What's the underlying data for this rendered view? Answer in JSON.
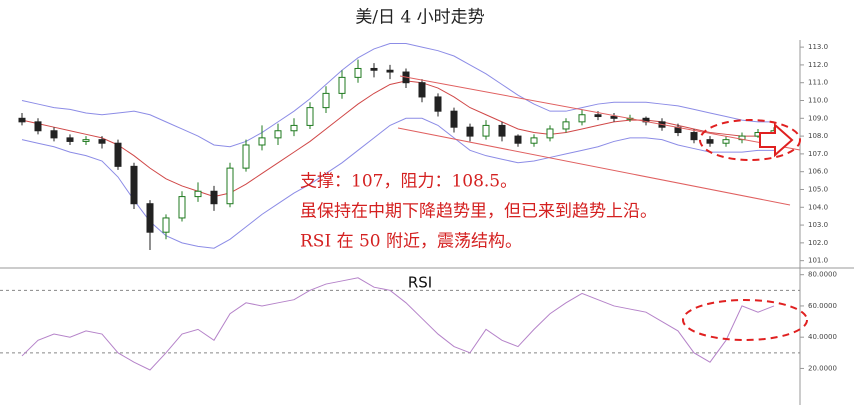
{
  "chart_data": [
    {
      "type": "candlestick",
      "title": "美/日 4 小时走势",
      "open": [
        109.0,
        108.8,
        108.3,
        107.9,
        107.7,
        107.8,
        107.6,
        106.3,
        104.2,
        102.6,
        103.4,
        104.6,
        104.9,
        104.2,
        106.2,
        107.5,
        107.9,
        108.3,
        108.6,
        109.6,
        110.4,
        111.3,
        111.8,
        111.7,
        111.6,
        111.0,
        110.2,
        109.4,
        108.5,
        108.0,
        108.6,
        108.0,
        107.6,
        107.9,
        108.4,
        108.8,
        109.2,
        109.1,
        109.0,
        109.0,
        108.8,
        108.5,
        108.2,
        107.8,
        107.6,
        107.8,
        108.0,
        108.2
      ],
      "high": [
        109.3,
        109.0,
        108.5,
        108.1,
        108.0,
        108.0,
        107.8,
        106.5,
        104.4,
        103.6,
        104.9,
        105.4,
        105.2,
        106.5,
        107.8,
        108.6,
        108.7,
        109.0,
        109.9,
        110.8,
        111.7,
        112.3,
        112.1,
        112.0,
        111.8,
        111.2,
        110.4,
        109.6,
        108.7,
        108.9,
        108.8,
        108.1,
        108.1,
        108.6,
        109.0,
        109.5,
        109.4,
        109.3,
        109.2,
        109.1,
        109.0,
        108.7,
        108.4,
        108.0,
        108.0,
        108.2,
        108.4,
        108.5
      ],
      "low": [
        108.6,
        108.1,
        107.7,
        107.5,
        107.5,
        107.3,
        106.1,
        103.9,
        101.6,
        102.2,
        103.2,
        104.3,
        103.8,
        104.0,
        106.0,
        107.2,
        107.5,
        108.0,
        108.4,
        109.3,
        110.1,
        111.0,
        111.3,
        111.2,
        110.7,
        109.9,
        109.1,
        108.2,
        107.7,
        107.8,
        107.7,
        107.4,
        107.4,
        107.7,
        108.2,
        108.6,
        108.9,
        108.8,
        108.8,
        108.6,
        108.3,
        108.0,
        107.6,
        107.4,
        107.4,
        107.6,
        107.9,
        108.0
      ],
      "close": [
        108.8,
        108.3,
        107.9,
        107.7,
        107.8,
        107.6,
        106.3,
        104.2,
        102.6,
        103.4,
        104.6,
        104.9,
        104.2,
        106.2,
        107.5,
        107.9,
        108.3,
        108.6,
        109.6,
        110.4,
        111.3,
        111.8,
        111.7,
        111.6,
        111.0,
        110.2,
        109.4,
        108.5,
        108.0,
        108.6,
        108.0,
        107.6,
        107.9,
        108.4,
        108.8,
        109.2,
        109.1,
        109.0,
        109.0,
        108.8,
        108.5,
        108.2,
        107.8,
        107.6,
        107.8,
        108.0,
        108.2,
        108.3
      ],
      "up_color": "#1f7a1f",
      "down_color": "#222222",
      "overlays": [
        {
          "color": "#8c8ce6",
          "values": [
            110.0,
            109.8,
            109.6,
            109.5,
            109.3,
            109.2,
            109.3,
            109.4,
            109.2,
            108.8,
            108.4,
            108.0,
            107.5,
            107.4,
            107.7,
            108.2,
            108.8,
            109.4,
            110.1,
            110.9,
            111.7,
            112.4,
            112.9,
            113.2,
            113.2,
            113.0,
            112.8,
            112.5,
            112.0,
            111.5,
            110.9,
            110.3,
            109.8,
            109.4,
            109.4,
            109.6,
            109.8,
            109.9,
            109.9,
            109.9,
            109.8,
            109.7,
            109.5,
            109.3,
            109.1,
            108.9,
            108.8,
            108.8
          ]
        },
        {
          "color": "#d04848",
          "values": [
            108.9,
            108.7,
            108.5,
            108.3,
            108.1,
            107.9,
            107.5,
            106.9,
            106.2,
            105.6,
            105.2,
            104.9,
            104.6,
            104.8,
            105.3,
            105.9,
            106.5,
            107.1,
            107.7,
            108.4,
            109.1,
            109.8,
            110.4,
            110.9,
            111.1,
            111.0,
            110.7,
            110.2,
            109.6,
            109.2,
            108.8,
            108.4,
            108.2,
            108.1,
            108.2,
            108.4,
            108.6,
            108.8,
            108.9,
            108.9,
            108.8,
            108.6,
            108.4,
            108.2,
            108.1,
            108.0,
            108.0,
            108.0
          ]
        },
        {
          "color": "#8c8ce6",
          "values": [
            107.8,
            107.6,
            107.4,
            107.1,
            106.9,
            106.6,
            105.7,
            104.4,
            103.2,
            102.4,
            102.0,
            101.8,
            101.7,
            102.2,
            102.9,
            103.6,
            104.2,
            104.8,
            105.3,
            105.9,
            106.5,
            107.2,
            107.9,
            108.6,
            109.0,
            109.0,
            108.6,
            107.9,
            107.2,
            106.9,
            106.7,
            106.5,
            106.6,
            106.8,
            107.0,
            107.2,
            107.4,
            107.7,
            107.9,
            107.9,
            107.8,
            107.5,
            107.3,
            107.1,
            107.1,
            107.1,
            107.2,
            107.2
          ]
        }
      ],
      "ylim": [
        100.7,
        113.4
      ],
      "yticks": [
        {
          "value": 101,
          "label": "101.0"
        },
        {
          "value": 102,
          "label": "102.0"
        },
        {
          "value": 103,
          "label": "103.0"
        },
        {
          "value": 104,
          "label": "104.0"
        },
        {
          "value": 105,
          "label": "105.0"
        },
        {
          "value": 106,
          "label": "106.0"
        },
        {
          "value": 107,
          "label": "107.0"
        },
        {
          "value": 108,
          "label": "108.0"
        },
        {
          "value": 109,
          "label": "109.0"
        },
        {
          "value": 110,
          "label": "110.0"
        },
        {
          "value": 111,
          "label": "111.0"
        },
        {
          "value": 112,
          "label": "112.0"
        },
        {
          "value": 113,
          "label": "113.0"
        }
      ],
      "annotations": [
        "支撑：107，阻力：108.5。",
        "虽保持在中期下降趋势里，但已来到趋势上沿。",
        "RSI 在 50 附近，震荡结构。"
      ],
      "annotation_color": "#d42020"
    },
    {
      "type": "line",
      "title": "RSI",
      "color": "#b583c9",
      "values": [
        28,
        38,
        42,
        40,
        44,
        42,
        30,
        24,
        19,
        30,
        42,
        45,
        38,
        55,
        62,
        60,
        62,
        64,
        70,
        74,
        76,
        78,
        72,
        70,
        62,
        52,
        42,
        34,
        30,
        45,
        38,
        34,
        45,
        55,
        62,
        68,
        64,
        60,
        58,
        56,
        50,
        44,
        30,
        24,
        38,
        60,
        56,
        60
      ],
      "levels": [
        30,
        70
      ],
      "ylim": [
        3,
        83
      ],
      "yticks": [
        {
          "value": 20,
          "label": "20.0000"
        },
        {
          "value": 40,
          "label": "40.0000"
        },
        {
          "value": 60,
          "label": "60.0000"
        },
        {
          "value": 80,
          "label": "80.0000"
        }
      ]
    }
  ]
}
